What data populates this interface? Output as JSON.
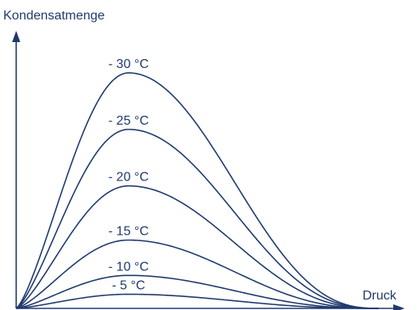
{
  "chart_data": {
    "type": "line",
    "title": "",
    "xlabel": "Druck",
    "ylabel": "Kondensatmenge",
    "grid": false,
    "series": [
      {
        "name": "- 30 °C",
        "peak_x": 0.31,
        "peak_y": 1.0
      },
      {
        "name": "- 25 °C",
        "peak_x": 0.31,
        "peak_y": 0.76
      },
      {
        "name": "- 20 °C",
        "peak_x": 0.31,
        "peak_y": 0.52
      },
      {
        "name": "- 15 °C",
        "peak_x": 0.31,
        "peak_y": 0.29
      },
      {
        "name": "- 10 °C",
        "peak_x": 0.31,
        "peak_y": 0.14
      },
      {
        "name": "- 5 °C",
        "peak_x": 0.31,
        "peak_y": 0.06
      }
    ],
    "xlim": [
      0,
      1
    ],
    "ylim": [
      0,
      1.05
    ],
    "legend": "inline-above-curves"
  }
}
